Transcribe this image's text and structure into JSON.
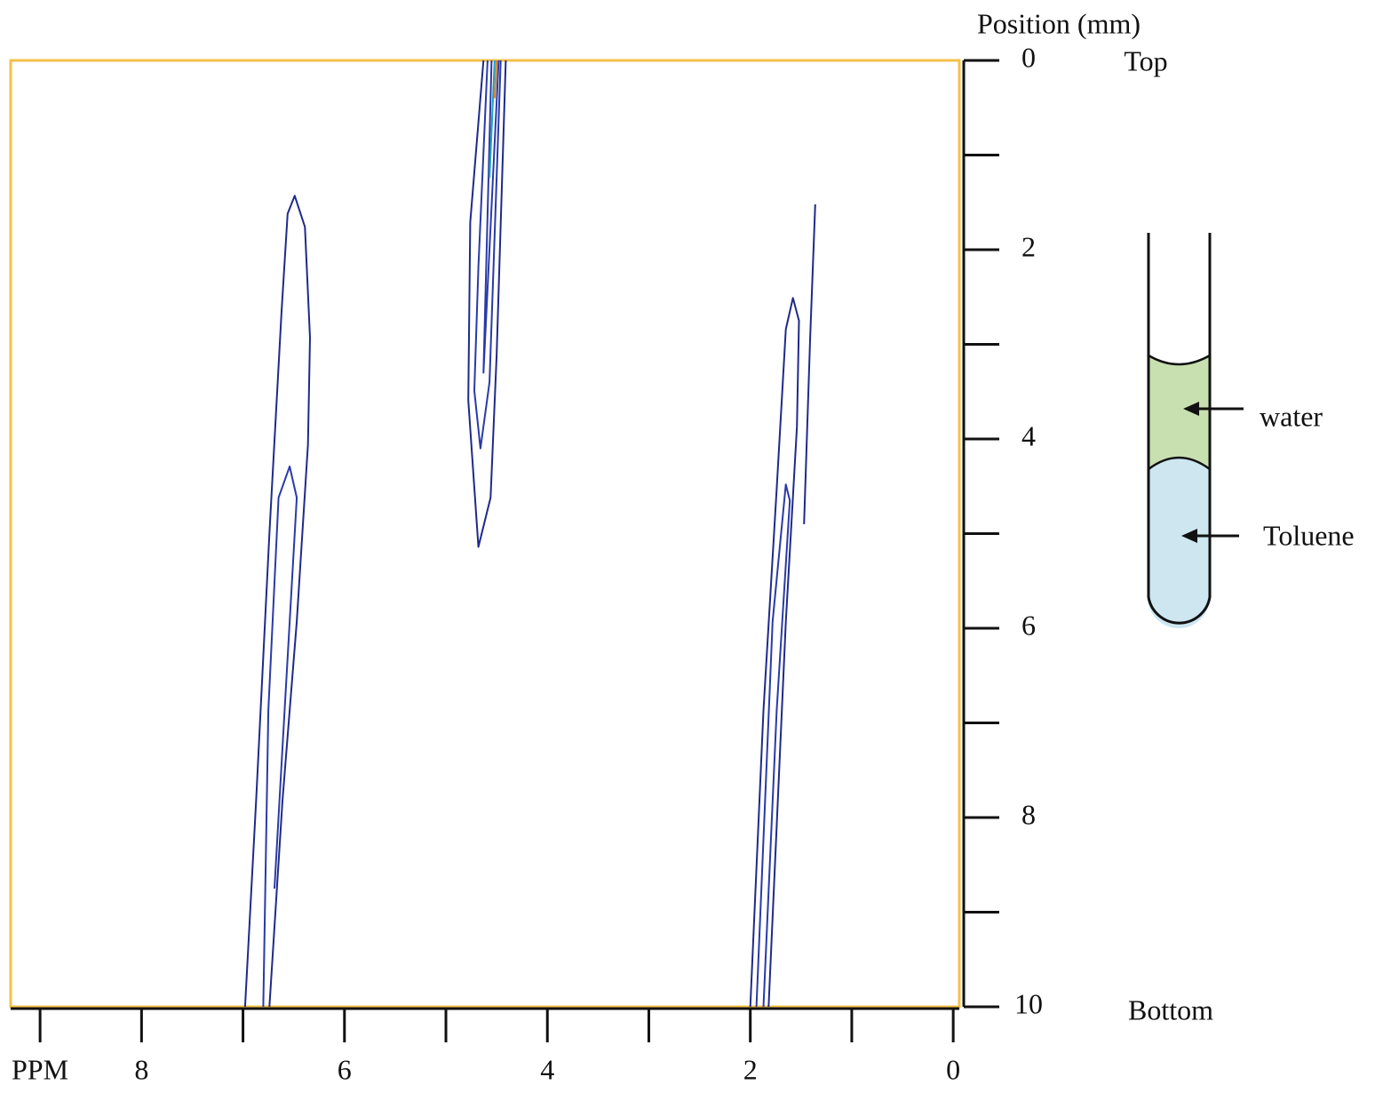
{
  "chart_data": {
    "type": "contour",
    "x_label": "PPM",
    "y_label": "Position (mm)",
    "y_top_label": "Top",
    "y_bottom_label": "Bottom",
    "xlim": [
      9.29,
      -0.06
    ],
    "ylim": [
      0,
      10
    ],
    "xticks": [
      8,
      6,
      4,
      2,
      0
    ],
    "xminor_ticks": [
      9,
      7,
      5,
      3,
      1
    ],
    "yticks": [
      0,
      2,
      4,
      6,
      8,
      10
    ],
    "yminor_ticks": [
      1,
      3,
      5,
      7,
      9
    ],
    "frame_color": "#f5c04a",
    "contours": [
      {
        "color": "#1f2a8a",
        "x": [
          6.98,
          6.87,
          6.74,
          6.62,
          6.56,
          6.49,
          6.39,
          6.34,
          6.36,
          6.47,
          6.61,
          6.74
        ],
        "y": [
          10,
          7.81,
          5.0,
          2.65,
          1.62,
          1.43,
          1.76,
          2.93,
          4.06,
          5.93,
          7.81,
          10
        ]
      },
      {
        "color": "#2a3aa8",
        "x": [
          6.8,
          6.75,
          6.65,
          6.54,
          6.47,
          6.59,
          6.69
        ],
        "y": [
          10,
          6.87,
          4.62,
          4.29,
          4.62,
          6.87,
          8.75
        ]
      },
      {
        "color": "#1f2a8a",
        "x": [
          4.63,
          4.76,
          4.78,
          4.68,
          4.56,
          4.5,
          4.41
        ],
        "y": [
          0,
          1.71,
          3.59,
          5.14,
          4.62,
          3.12,
          0
        ]
      },
      {
        "color": "#2a3aa8",
        "x": [
          4.59,
          4.68,
          4.72,
          4.66,
          4.57,
          4.46
        ],
        "y": [
          0,
          2.18,
          3.49,
          4.1,
          3.4,
          0
        ]
      },
      {
        "color": "#2a3aa8",
        "x": [
          4.55,
          4.63,
          4.48
        ],
        "y": [
          0,
          3.3,
          0
        ]
      },
      {
        "color": "#20a0c0",
        "x": [
          4.52,
          4.57
        ],
        "y": [
          0,
          1.24
        ]
      },
      {
        "color": "#e08020",
        "x": [
          4.5,
          4.52
        ],
        "y": [
          0,
          0.4
        ]
      },
      {
        "color": "#1f2a8a",
        "x": [
          2.0,
          1.87,
          1.74,
          1.65,
          1.58,
          1.52,
          1.54,
          1.65,
          1.82
        ],
        "y": [
          10,
          6.87,
          4.53,
          2.84,
          2.51,
          2.75,
          3.87,
          5.93,
          10
        ]
      },
      {
        "color": "#1f2a8a",
        "x": [
          1.36,
          1.41,
          1.47
        ],
        "y": [
          1.52,
          2.93,
          4.9
        ]
      },
      {
        "color": "#2a3aa8",
        "x": [
          1.94,
          1.78,
          1.65,
          1.61,
          1.74,
          1.87
        ],
        "y": [
          10,
          5.93,
          4.48,
          4.65,
          6.87,
          10
        ]
      }
    ]
  },
  "diagram": {
    "layers": [
      "water",
      "Toluene"
    ]
  }
}
